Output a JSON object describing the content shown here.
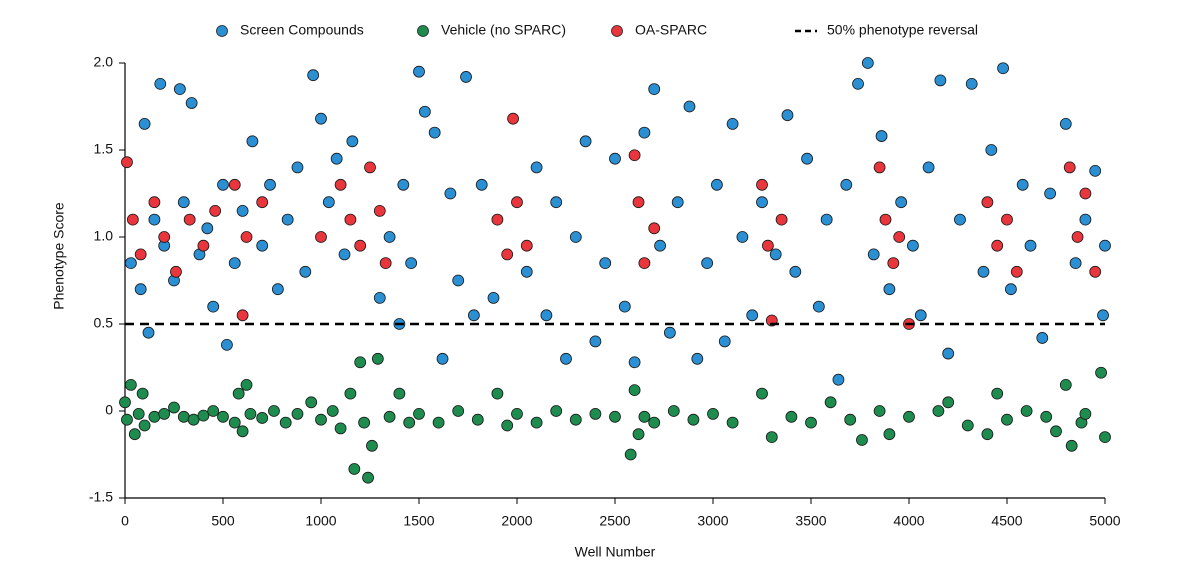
{
  "chart_data": {
    "type": "scatter",
    "x_label": "Well Number",
    "y_label": "Phenotype Score",
    "xlim": [
      0,
      5000
    ],
    "xticks": [
      0,
      500,
      1000,
      1500,
      2000,
      2500,
      3000,
      3500,
      4000,
      4500,
      5000
    ],
    "ylim": [
      -1.5,
      2.0
    ],
    "yticks": [
      {
        "value": 2.0,
        "label": "2.0"
      },
      1.5,
      {
        "value": 1.0,
        "label": "1.0"
      },
      0.5,
      0,
      -1.5
    ],
    "y_scale": "equal-spacing-between-ticks",
    "legend_position": "top",
    "series": [
      {
        "name": "Screen Compounds",
        "color": "#2b8fd3",
        "x": [
          30,
          80,
          100,
          120,
          150,
          180,
          200,
          250,
          280,
          300,
          340,
          380,
          420,
          450,
          500,
          520,
          560,
          600,
          650,
          700,
          740,
          780,
          830,
          880,
          920,
          960,
          1000,
          1040,
          1080,
          1120,
          1160,
          1300,
          1350,
          1400,
          1420,
          1460,
          1500,
          1530,
          1580,
          1620,
          1660,
          1700,
          1740,
          1780,
          1820,
          1880,
          2050,
          2100,
          2150,
          2200,
          2250,
          2300,
          2350,
          2400,
          2450,
          2500,
          2550,
          2600,
          2650,
          2700,
          2730,
          2780,
          2820,
          2880,
          2920,
          2970,
          3020,
          3060,
          3100,
          3150,
          3200,
          3250,
          3320,
          3380,
          3420,
          3480,
          3540,
          3580,
          3640,
          3680,
          3740,
          3790,
          3820,
          3860,
          3900,
          3960,
          4020,
          4060,
          4100,
          4160,
          4200,
          4260,
          4320,
          4380,
          4420,
          4480,
          4520,
          4580,
          4620,
          4680,
          4720,
          4800,
          4850,
          4900,
          4950,
          4990,
          5000
        ],
        "values": [
          0.85,
          0.7,
          1.65,
          0.45,
          1.1,
          1.88,
          0.95,
          0.75,
          1.85,
          1.2,
          1.77,
          0.9,
          1.05,
          0.6,
          1.3,
          0.38,
          0.85,
          1.15,
          1.55,
          0.95,
          1.3,
          0.7,
          1.1,
          1.4,
          0.8,
          1.93,
          1.68,
          1.2,
          1.45,
          0.9,
          1.55,
          0.65,
          1.0,
          0.5,
          1.3,
          0.85,
          1.95,
          1.72,
          1.6,
          0.3,
          1.25,
          0.75,
          1.92,
          0.55,
          1.3,
          0.65,
          0.8,
          1.4,
          0.55,
          1.2,
          0.3,
          1.0,
          1.55,
          0.4,
          0.85,
          1.45,
          0.6,
          0.28,
          1.6,
          1.85,
          0.95,
          0.45,
          1.2,
          1.75,
          0.3,
          0.85,
          1.3,
          0.4,
          1.65,
          1.0,
          0.55,
          1.2,
          0.9,
          1.7,
          0.8,
          1.45,
          0.6,
          1.1,
          0.18,
          1.3,
          1.88,
          2.0,
          0.9,
          1.58,
          0.7,
          1.2,
          0.95,
          0.55,
          1.4,
          1.9,
          0.33,
          1.1,
          1.88,
          0.8,
          1.5,
          1.97,
          0.7,
          1.3,
          0.95,
          0.42,
          1.25,
          1.65,
          0.85,
          1.1,
          1.38,
          0.55,
          0.95
        ]
      },
      {
        "name": "Vehicle (no SPARC)",
        "color": "#1e8c4e",
        "x": [
          0,
          10,
          30,
          50,
          70,
          90,
          100,
          150,
          200,
          250,
          300,
          350,
          400,
          450,
          500,
          560,
          580,
          600,
          620,
          640,
          700,
          760,
          820,
          880,
          950,
          1000,
          1060,
          1100,
          1150,
          1170,
          1200,
          1220,
          1240,
          1260,
          1290,
          1350,
          1400,
          1450,
          1500,
          1600,
          1700,
          1800,
          1900,
          1950,
          2000,
          2100,
          2200,
          2300,
          2400,
          2500,
          2580,
          2600,
          2620,
          2650,
          2700,
          2800,
          2900,
          3000,
          3100,
          3250,
          3300,
          3400,
          3500,
          3600,
          3700,
          3760,
          3850,
          3900,
          4000,
          4150,
          4200,
          4300,
          4400,
          4450,
          4500,
          4600,
          4700,
          4750,
          4800,
          4830,
          4880,
          4900,
          4980,
          5000
        ],
        "values": [
          0.05,
          -0.15,
          0.15,
          -0.4,
          -0.05,
          0.1,
          -0.25,
          -0.1,
          -0.05,
          0.02,
          -0.1,
          -0.15,
          -0.08,
          0,
          -0.1,
          -0.2,
          0.1,
          -0.35,
          0.15,
          -0.05,
          -0.12,
          0,
          -0.2,
          -0.05,
          0.05,
          -0.15,
          0,
          -0.3,
          0.1,
          -1.0,
          0.28,
          -0.2,
          -1.15,
          -0.6,
          0.3,
          -0.1,
          0.1,
          -0.2,
          -0.05,
          -0.2,
          0,
          -0.15,
          0.1,
          -0.25,
          -0.05,
          -0.2,
          0,
          -0.15,
          -0.05,
          -0.1,
          -0.75,
          0.12,
          -0.4,
          -0.1,
          -0.2,
          0,
          -0.15,
          -0.05,
          -0.2,
          0.1,
          -0.45,
          -0.1,
          -0.2,
          0.05,
          -0.15,
          -0.5,
          0,
          -0.4,
          -0.1,
          0,
          0.05,
          -0.25,
          -0.4,
          0.1,
          -0.15,
          0,
          -0.1,
          -0.35,
          0.15,
          -0.6,
          -0.2,
          -0.05,
          0.22,
          -0.45
        ]
      },
      {
        "name": "OA-SPARC",
        "color": "#e8363c",
        "x": [
          10,
          40,
          80,
          150,
          200,
          260,
          330,
          400,
          460,
          560,
          600,
          620,
          700,
          1000,
          1100,
          1150,
          1200,
          1250,
          1300,
          1330,
          1900,
          1950,
          1980,
          2000,
          2050,
          2600,
          2620,
          2650,
          2700,
          3250,
          3280,
          3300,
          3350,
          3850,
          3880,
          3920,
          3950,
          4000,
          4400,
          4450,
          4500,
          4550,
          4820,
          4860,
          4900,
          4950
        ],
        "values": [
          1.43,
          1.1,
          0.9,
          1.2,
          1.0,
          0.8,
          1.1,
          0.95,
          1.15,
          1.3,
          0.55,
          1.0,
          1.2,
          1.0,
          1.3,
          1.1,
          0.95,
          1.4,
          1.15,
          0.85,
          1.1,
          0.9,
          1.68,
          1.2,
          0.95,
          1.47,
          1.2,
          0.85,
          1.05,
          1.3,
          0.95,
          0.52,
          1.1,
          1.4,
          1.1,
          0.85,
          1.0,
          0.5,
          1.2,
          0.95,
          1.1,
          0.8,
          1.4,
          1.0,
          1.25,
          0.8
        ]
      }
    ],
    "reference_line": {
      "name": "50% phenotype reversal",
      "value": 0.5,
      "color": "#000000",
      "style": "dashed"
    }
  }
}
